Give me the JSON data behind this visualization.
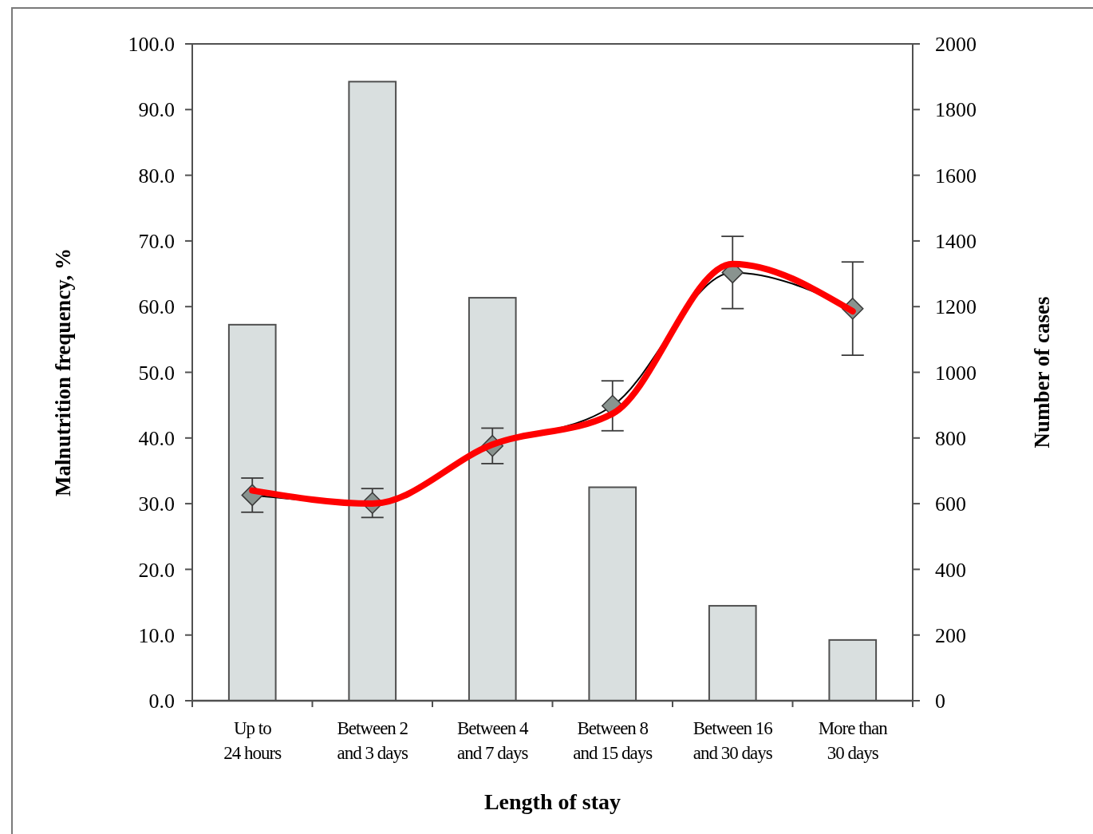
{
  "chart_data": {
    "type": "bar",
    "xlabel": "Length of stay",
    "ylabel": "Malnutrition frequency, %",
    "y2label": "Number of cases",
    "categories": [
      "Up to\n24 hours",
      "Between 2\nand 3 days",
      "Between 4\nand 7 days",
      "Between 8\nand 15 days",
      "Between 16\nand 30 days",
      "More than\n30 days"
    ],
    "ylim": [
      0,
      100
    ],
    "yticks": [
      {
        "value": 0,
        "label": "0.0"
      },
      {
        "value": 10,
        "label": "10.0"
      },
      {
        "value": 20,
        "label": "20.0"
      },
      {
        "value": 30,
        "label": "30.0"
      },
      {
        "value": 40,
        "label": "40.0"
      },
      {
        "value": 50,
        "label": "50.0"
      },
      {
        "value": 60,
        "label": "60.0"
      },
      {
        "value": 70,
        "label": "70.0"
      },
      {
        "value": 80,
        "label": "80.0"
      },
      {
        "value": 90,
        "label": "90.0"
      },
      {
        "value": 100,
        "label": "100.0"
      }
    ],
    "y2lim": [
      0,
      2000
    ],
    "y2ticks": [
      0,
      200,
      400,
      600,
      800,
      1000,
      1200,
      1400,
      1600,
      1800,
      2000
    ],
    "series": [
      {
        "axis": "y2",
        "color": "#d9dfdf",
        "values": [
          1145,
          1885,
          1227,
          650,
          289,
          185
        ]
      },
      {
        "type": "line",
        "color": "#000000",
        "marker": "diamond",
        "values": [
          31.3,
          30.1,
          38.8,
          44.9,
          65.2,
          59.7
        ],
        "errors": [
          2.6,
          2.2,
          2.7,
          3.8,
          5.5,
          7.1
        ]
      },
      {
        "type": "line",
        "color": "#ff0000",
        "marker": "none",
        "values": [
          32.0,
          30.0,
          39.0,
          43.7,
          66.5,
          59.3
        ]
      }
    ]
  }
}
